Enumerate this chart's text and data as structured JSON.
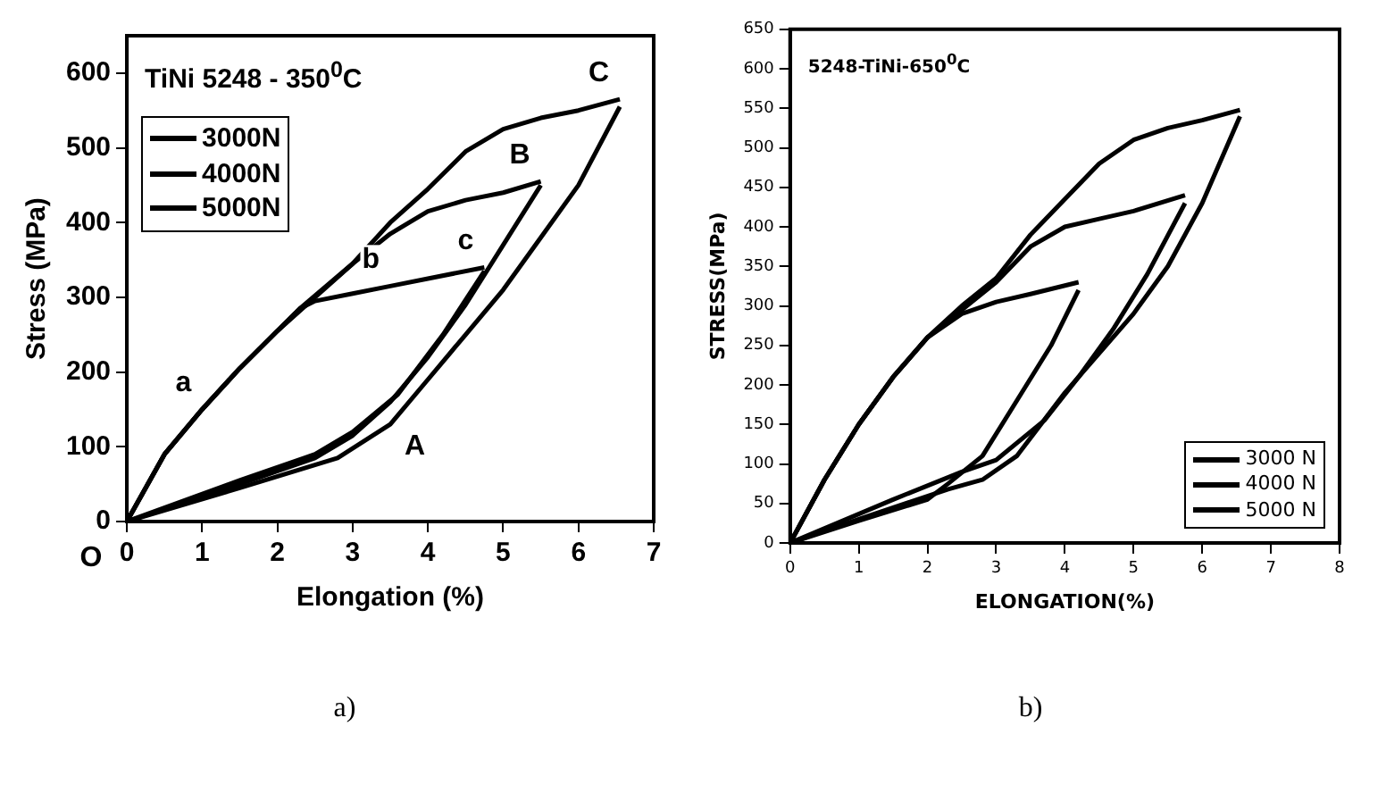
{
  "chart_data": [
    {
      "type": "line",
      "title": "TiNi 5248 - 350$^{0}$C",
      "xlabel": "Elongation (%)",
      "ylabel": "Stress (MPa)",
      "xlim": [
        0,
        7
      ],
      "xticks": [
        0,
        1,
        2,
        3,
        4,
        5,
        6,
        7
      ],
      "ylim": [
        0,
        650
      ],
      "yticks": [
        0,
        100,
        200,
        300,
        400,
        500,
        600
      ],
      "legend": "top left",
      "marker": "none",
      "line_style": "solid",
      "grid": false,
      "series": [
        {
          "name": "3000N",
          "color": "#000000",
          "x": [
            0,
            0.5,
            1,
            1.5,
            2,
            2.3,
            2.5,
            3,
            3.5,
            4,
            4.75
          ],
          "values": [
            0,
            90,
            150,
            205,
            255,
            285,
            295,
            305,
            315,
            325,
            340
          ]
        },
        {
          "color": "#000000",
          "x": [
            0,
            1.5,
            2.5,
            3,
            3.6,
            4.2,
            4.75
          ],
          "values": [
            0,
            55,
            90,
            120,
            170,
            250,
            335
          ]
        },
        {
          "name": "4000N",
          "color": "#000000",
          "x": [
            0,
            0.5,
            1,
            1.5,
            2,
            2.3,
            3,
            3.5,
            4,
            4.5,
            5,
            5.5
          ],
          "values": [
            0,
            90,
            150,
            205,
            255,
            285,
            345,
            385,
            415,
            430,
            440,
            455
          ]
        },
        {
          "color": "#000000",
          "x": [
            0,
            1.5,
            2.5,
            3,
            3.5,
            4,
            4.5,
            5,
            5.5
          ],
          "values": [
            0,
            50,
            85,
            115,
            160,
            220,
            290,
            370,
            450
          ]
        },
        {
          "name": "5000N",
          "color": "#000000",
          "x": [
            0,
            0.5,
            1,
            1.5,
            2,
            2.5,
            3,
            3.5,
            4,
            4.5,
            5,
            5.5,
            6,
            6.55
          ],
          "values": [
            0,
            90,
            150,
            205,
            255,
            300,
            345,
            400,
            445,
            495,
            525,
            540,
            550,
            565
          ]
        },
        {
          "color": "#000000",
          "x": [
            0,
            1.5,
            2.8,
            3.5,
            4,
            4.5,
            5,
            5.5,
            6,
            6.55
          ],
          "values": [
            0,
            45,
            85,
            130,
            190,
            250,
            310,
            380,
            450,
            555
          ]
        }
      ],
      "annotations": [
        {
          "text": "O",
          "x": 0,
          "y": 0
        },
        {
          "text": "a",
          "x": 1,
          "y": 150
        },
        {
          "text": "b",
          "x": 3.5,
          "y": 315
        },
        {
          "text": "c",
          "x": 4.75,
          "y": 340
        },
        {
          "text": "A",
          "x": 3.5,
          "y": 130
        },
        {
          "text": "B",
          "x": 5.5,
          "y": 455
        },
        {
          "text": "C",
          "x": 6.55,
          "y": 565
        },
        "a)"
      ]
    },
    {
      "type": "line",
      "title": "5248-TiNi-650$^{0}$C",
      "xlabel": "ELONGATION(%)",
      "ylabel": "STRESS(MPa)",
      "xlim": [
        0,
        8
      ],
      "xticks": [
        0,
        1,
        2,
        3,
        4,
        5,
        6,
        7,
        8
      ],
      "ylim": [
        0,
        650
      ],
      "yticks": [
        0,
        50,
        100,
        150,
        200,
        250,
        300,
        350,
        400,
        450,
        500,
        550,
        600,
        650
      ],
      "legend": "bottom right",
      "marker": "none",
      "line_style": "solid",
      "grid": false,
      "series": [
        {
          "name": "3000 N",
          "color": "#000000",
          "x": [
            0,
            0.5,
            1,
            1.5,
            2,
            2.5,
            3,
            3.5,
            4.2
          ],
          "values": [
            0,
            80,
            150,
            210,
            260,
            290,
            305,
            315,
            330
          ]
        },
        {
          "color": "#000000",
          "x": [
            0,
            1,
            2,
            2.3,
            2.8,
            3.3,
            3.8,
            4.2
          ],
          "values": [
            0,
            28,
            55,
            75,
            110,
            180,
            250,
            320
          ]
        },
        {
          "name": "4000 N",
          "color": "#000000",
          "x": [
            0,
            0.5,
            1,
            1.5,
            2,
            2.5,
            3,
            3.5,
            4,
            4.5,
            5,
            5.75
          ],
          "values": [
            0,
            80,
            150,
            210,
            260,
            295,
            330,
            375,
            400,
            410,
            420,
            440
          ]
        },
        {
          "color": "#000000",
          "x": [
            0,
            1.5,
            2.5,
            3,
            3.7,
            4.2,
            4.7,
            5.2,
            5.75
          ],
          "values": [
            0,
            55,
            90,
            105,
            155,
            210,
            270,
            340,
            430
          ]
        },
        {
          "name": "5000 N",
          "color": "#000000",
          "x": [
            0,
            0.5,
            1,
            1.5,
            2,
            2.5,
            3,
            3.5,
            4,
            4.5,
            5,
            5.5,
            6,
            6.55
          ],
          "values": [
            0,
            80,
            150,
            210,
            260,
            300,
            335,
            390,
            435,
            480,
            510,
            525,
            535,
            548
          ]
        },
        {
          "color": "#000000",
          "x": [
            0,
            1,
            2.3,
            2.8,
            3.3,
            4,
            4.5,
            5,
            5.5,
            6,
            6.55
          ],
          "values": [
            0,
            30,
            68,
            80,
            110,
            190,
            240,
            290,
            350,
            430,
            540
          ]
        }
      ],
      "annotations": [
        "b)"
      ]
    }
  ]
}
